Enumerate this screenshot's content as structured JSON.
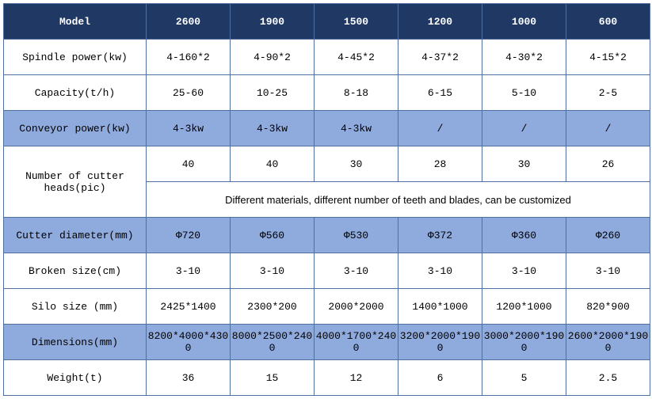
{
  "header": {
    "label": "Model",
    "cols": [
      "2600",
      "1900",
      "1500",
      "1200",
      "1000",
      "600"
    ]
  },
  "rows": {
    "spindle": {
      "label": "Spindle power(kw)",
      "vals": [
        "4-160*2",
        "4-90*2",
        "4-45*2",
        "4-37*2",
        "4-30*2",
        "4-15*2"
      ]
    },
    "capacity": {
      "label": "Capacity(t/h)",
      "vals": [
        "25-60",
        "10-25",
        "8-18",
        "6-15",
        "5-10",
        "2-5"
      ]
    },
    "conveyor": {
      "label": "Conveyor power(kw)",
      "vals": [
        "4-3kw",
        "4-3kw",
        "4-3kw",
        "/",
        "/",
        "/"
      ]
    },
    "cutterheads": {
      "label": "Number of cutter heads(pic)",
      "vals": [
        "40",
        "40",
        "30",
        "28",
        "30",
        "26"
      ],
      "note": "Different materials, different number of teeth and blades, can be customized"
    },
    "cutterdia": {
      "label": "Cutter diameter(mm)",
      "vals": [
        "Φ720",
        "Φ560",
        "Φ530",
        "Φ372",
        "Φ360",
        "Φ260"
      ]
    },
    "broken": {
      "label": "Broken size(cm)",
      "vals": [
        "3-10",
        "3-10",
        "3-10",
        "3-10",
        "3-10",
        "3-10"
      ]
    },
    "silo": {
      "label": "Silo size (mm)",
      "vals": [
        "2425*1400",
        "2300*200",
        "2000*2000",
        "1400*1000",
        "1200*1000",
        "820*900"
      ]
    },
    "dims": {
      "label": "Dimensions(mm)",
      "vals": [
        "8200*4000*4300",
        "8000*2500*2400",
        "4000*1700*2400",
        "3200*2000*1900",
        "3000*2000*1900",
        "2600*2000*1900"
      ]
    },
    "weight": {
      "label": "Weight(t)",
      "vals": [
        "36",
        "15",
        "12",
        "6",
        "5",
        "2.5"
      ]
    }
  },
  "style": {
    "header_bg": "#1f3864",
    "header_fg": "#ffffff",
    "accent_bg": "#8faadc",
    "border_color": "#4f6fa0"
  }
}
